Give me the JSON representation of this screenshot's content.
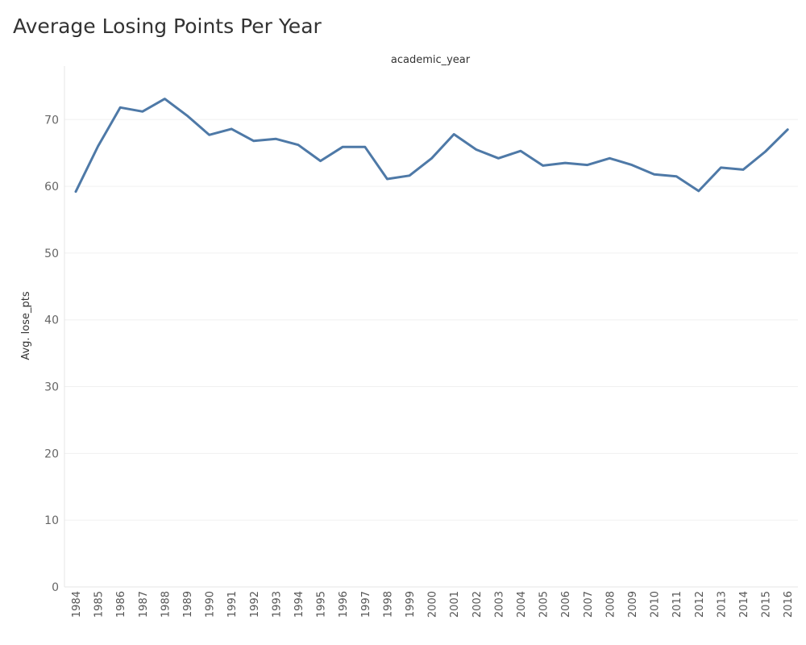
{
  "title": "Average Losing Points Per Year",
  "chart_data": {
    "type": "line",
    "title": "Average Losing Points Per Year",
    "xlabel": "academic_year",
    "ylabel": "Avg. lose_pts",
    "ylim": [
      0,
      78
    ],
    "yticks": [
      "0",
      "10",
      "20",
      "30",
      "40",
      "50",
      "60",
      "70"
    ],
    "grid": true,
    "line_color": "#4e79a7",
    "categories": [
      "1984",
      "1985",
      "1986",
      "1987",
      "1988",
      "1989",
      "1990",
      "1991",
      "1992",
      "1993",
      "1994",
      "1995",
      "1996",
      "1997",
      "1998",
      "1999",
      "2000",
      "2001",
      "2002",
      "2003",
      "2004",
      "2005",
      "2006",
      "2007",
      "2008",
      "2009",
      "2010",
      "2011",
      "2012",
      "2013",
      "2014",
      "2015",
      "2016"
    ],
    "values": [
      59.2,
      66.0,
      71.8,
      71.2,
      73.1,
      70.6,
      67.7,
      68.6,
      66.8,
      67.1,
      66.2,
      63.8,
      65.9,
      65.9,
      61.1,
      61.6,
      64.2,
      67.8,
      65.5,
      64.2,
      65.3,
      63.1,
      63.5,
      63.2,
      64.2,
      63.2,
      61.8,
      61.5,
      59.3,
      62.8,
      62.5,
      65.2,
      68.5
    ]
  }
}
